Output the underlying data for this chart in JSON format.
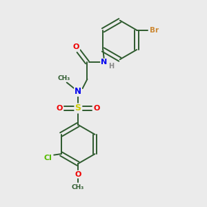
{
  "background_color": "#ebebeb",
  "bond_color": "#2d5a2d",
  "atom_colors": {
    "N": "#0000ee",
    "O": "#ee0000",
    "S": "#cccc00",
    "Cl": "#55bb00",
    "Br": "#cc8833",
    "H": "#888888",
    "C": "#2d5a2d"
  },
  "figsize": [
    3.0,
    3.0
  ],
  "dpi": 100
}
